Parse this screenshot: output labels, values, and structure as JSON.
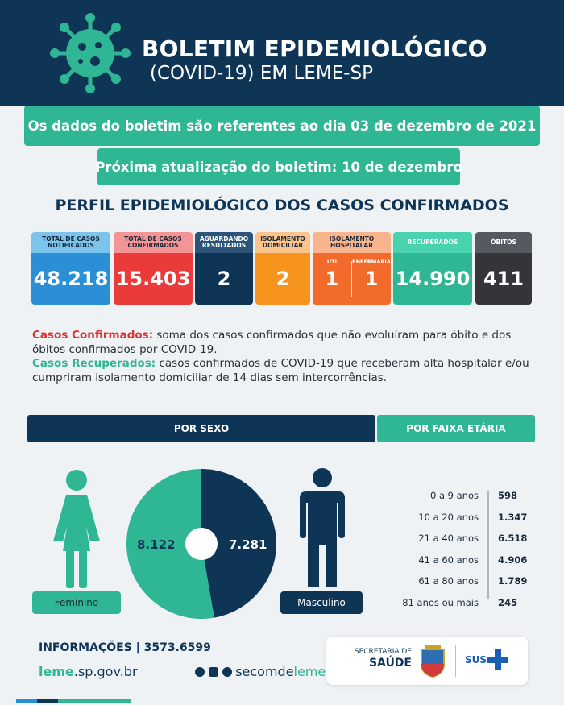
{
  "header": {
    "title": "BOLETIM EPIDEMIOLÓGICO",
    "subtitle": "(COVID-19) EM LEME-SP",
    "icon": "virus-icon",
    "color": "#0f3556"
  },
  "banners": {
    "date": "Os dados do boletim são referentes ao dia 03 de dezembro de 2021",
    "next_update": "Próxima atualização do boletim: 10 de dezembro"
  },
  "section_title": "PERFIL EPIDEMIOLÓGICO DOS CASOS CONFIRMADOS",
  "stats": {
    "notificados": {
      "label": "TOTAL DE CASOS NOTIFICADOS",
      "value": "48.218",
      "head_color": "#7cc4ec",
      "body_color": "#2a8fd6"
    },
    "confirmados": {
      "label": "TOTAL DE CASOS CONFIRMADOS",
      "value": "15.403",
      "head_color": "#f49595",
      "body_color": "#ea3a3a"
    },
    "aguardando": {
      "label": "AGUARDANDO RESULTADOS",
      "value": "2",
      "head_color": "#2c5478",
      "body_color": "#0f3556"
    },
    "isolamento_domiciliar": {
      "label": "ISOLAMENTO DOMICILIAR",
      "value": "2",
      "head_color": "#fbc48b",
      "body_color": "#f7941e"
    },
    "isolamento_hospitalar": {
      "label": "ISOLAMENTO HOSPITALAR",
      "uti_label": "UTI",
      "uti_value": "1",
      "enfermaria_label": "ENFERMARIA",
      "enfermaria_value": "1",
      "head_color": "#f8b48c",
      "body_color": "#f26b2a"
    },
    "recuperados": {
      "label": "RECUPERADOS",
      "value": "14.990",
      "head_color": "#48d3ae",
      "body_color": "#2fb694"
    },
    "obitos": {
      "label": "ÓBITOS",
      "value": "411",
      "head_color": "#555a60",
      "body_color": "#333538"
    }
  },
  "definitions": {
    "confirmados_term": "Casos Confirmados:",
    "confirmados_text": " soma dos casos confirmados que não evoluíram para óbito e dos óbitos confirmados por COVID-19.",
    "recuperados_term": "Casos Recuperados:",
    "recuperados_text": " casos confirmados de COVID-19 que receberam alta hospitalar e/ou cumpriram isolamento domiciliar de 14 dias sem intercorrências."
  },
  "sex_section": {
    "title": "POR SEXO",
    "feminino_label": "Feminino",
    "masculino_label": "Masculino",
    "feminino_color": "#2fb694",
    "masculino_color": "#0f3556"
  },
  "age_section": {
    "title": "POR FAIXA ETÁRIA"
  },
  "chart_data": [
    {
      "type": "pie",
      "categories": [
        "Feminino",
        "Masculino"
      ],
      "values": [
        8122,
        7281
      ],
      "labels": [
        "8.122",
        "7.281"
      ],
      "colors": [
        "#2fb694",
        "#0f3556"
      ]
    },
    {
      "type": "table",
      "categories": [
        "0 a 9 anos",
        "10 a 20 anos",
        "21 a 40 anos",
        "41 a 60 anos",
        "61 a 80 anos",
        "81 anos ou mais"
      ],
      "values": [
        598,
        1347,
        6518,
        4906,
        1789,
        245
      ],
      "labels": [
        "598",
        "1.347",
        "6.518",
        "4.906",
        "1.789",
        "245"
      ]
    }
  ],
  "footer": {
    "info_label": "INFORMAÇÕES | 3573.6599",
    "site_prefix": "leme",
    "site_suffix": ".sp.gov.br",
    "social_prefix": "secomde",
    "social_suffix": "leme",
    "secretaria_label": "SECRETARIA DE",
    "saude_label": "SAÚDE",
    "sus_label": "SUS"
  }
}
